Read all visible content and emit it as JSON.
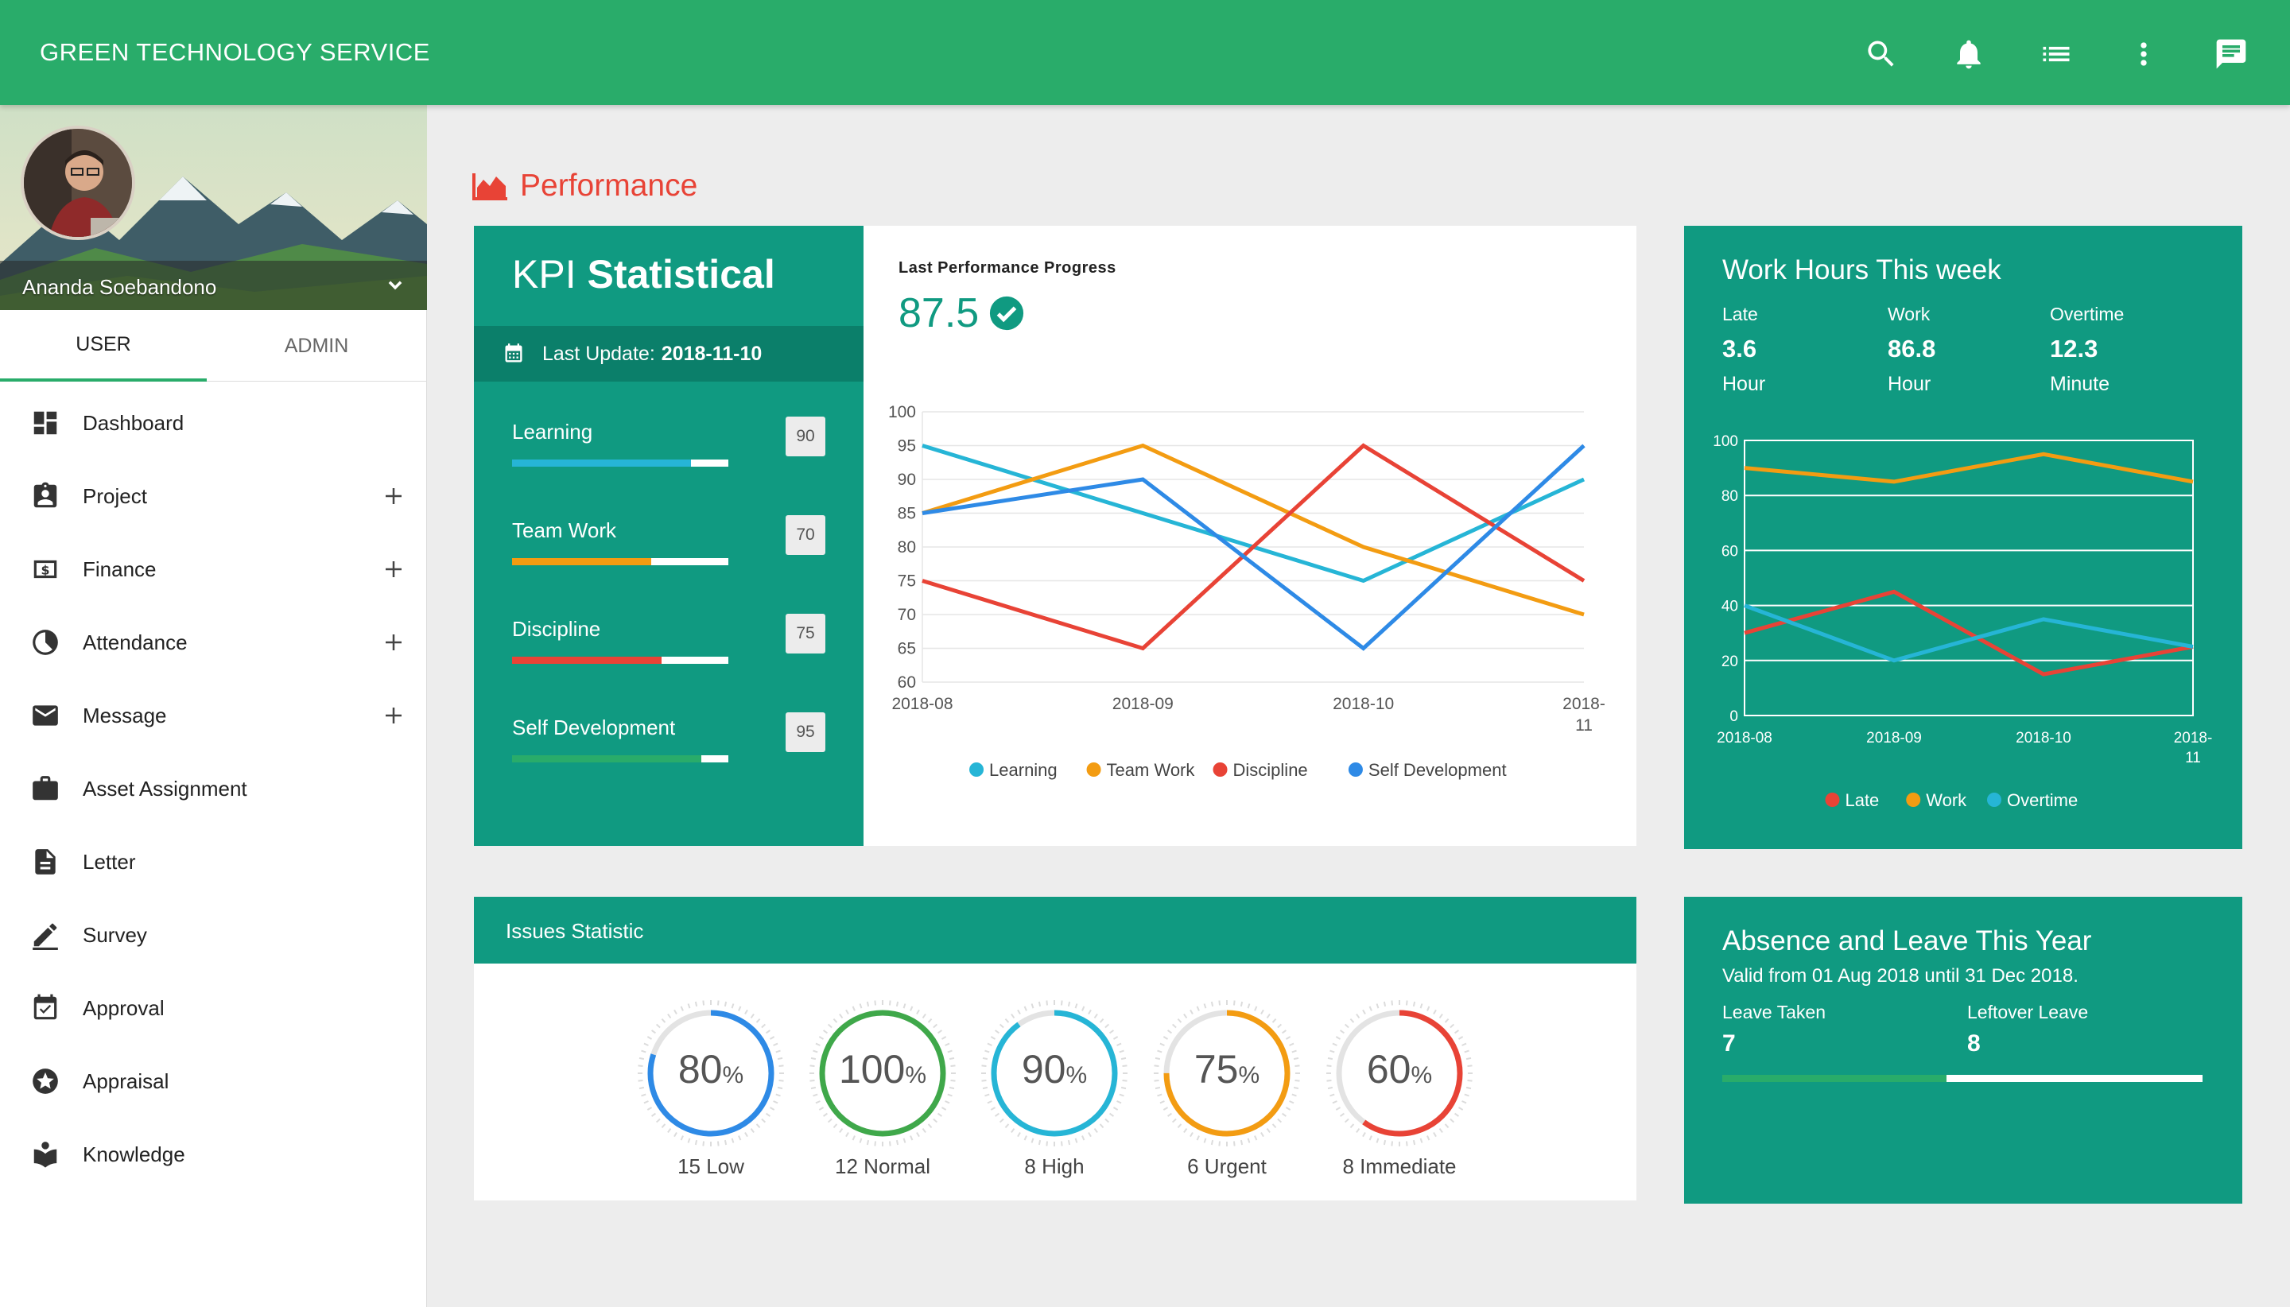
{
  "app": {
    "title": "GREEN TECHNOLOGY SERVICE"
  },
  "topbar_icons": [
    "search-icon",
    "bell-icon",
    "list-icon",
    "more-vert-icon",
    "chat-icon"
  ],
  "user": {
    "name": "Ananda Soebandono"
  },
  "tabs": [
    {
      "label": "USER",
      "active": true
    },
    {
      "label": "ADMIN",
      "active": false
    }
  ],
  "menu": [
    {
      "label": "Dashboard",
      "icon": "dashboard-icon",
      "expandable": false
    },
    {
      "label": "Project",
      "icon": "clipboard-icon",
      "expandable": true
    },
    {
      "label": "Finance",
      "icon": "money-icon",
      "expandable": true
    },
    {
      "label": "Attendance",
      "icon": "clock-icon",
      "expandable": true
    },
    {
      "label": "Message",
      "icon": "mail-icon",
      "expandable": true
    },
    {
      "label": "Asset Assignment",
      "icon": "briefcase-icon",
      "expandable": false
    },
    {
      "label": "Letter",
      "icon": "document-icon",
      "expandable": false
    },
    {
      "label": "Survey",
      "icon": "pencil-icon",
      "expandable": false
    },
    {
      "label": "Approval",
      "icon": "calendar-check-icon",
      "expandable": false
    },
    {
      "label": "Appraisal",
      "icon": "star-circle-icon",
      "expandable": false
    },
    {
      "label": "Knowledge",
      "icon": "book-icon",
      "expandable": false
    }
  ],
  "section": {
    "title": "Performance"
  },
  "kpi": {
    "title_light": "KPI",
    "title_bold": "Statistical",
    "last_update_label": "Last Update:",
    "last_update_date": "2018-11-10",
    "items": [
      {
        "label": "Learning",
        "value": 90,
        "color": "#26b5d6"
      },
      {
        "label": "Team Work",
        "value": 70,
        "color": "#f39c12"
      },
      {
        "label": "Discipline",
        "value": 75,
        "color": "#e84336"
      },
      {
        "label": "Self Development",
        "value": 95,
        "color": "#29ac6a"
      }
    ]
  },
  "performance": {
    "title": "Last Performance Progress",
    "value": "87.5"
  },
  "chart_data": [
    {
      "type": "line",
      "title": "Last Performance Progress",
      "x": [
        "2018-08",
        "2018-09",
        "2018-10",
        "2018-11"
      ],
      "ylim": [
        60,
        100
      ],
      "yticks": [
        60,
        65,
        70,
        75,
        80,
        85,
        90,
        95,
        100
      ],
      "grid": true,
      "legend": "bottom",
      "series": [
        {
          "name": "Learning",
          "color": "#26b5d6",
          "values": [
            95,
            85,
            75,
            90
          ]
        },
        {
          "name": "Team Work",
          "color": "#f39c12",
          "values": [
            85,
            95,
            80,
            70
          ]
        },
        {
          "name": "Discipline",
          "color": "#e84336",
          "values": [
            75,
            65,
            95,
            75
          ]
        },
        {
          "name": "Self Development",
          "color": "#2e8ae6",
          "values": [
            85,
            90,
            65,
            95
          ]
        }
      ]
    },
    {
      "type": "line",
      "title": "Work Hours This week",
      "x": [
        "2018-08",
        "2018-09",
        "2018-10",
        "2018-11"
      ],
      "ylim": [
        0,
        100
      ],
      "yticks": [
        0,
        20,
        40,
        60,
        80,
        100
      ],
      "grid": true,
      "legend": "bottom",
      "series": [
        {
          "name": "Late",
          "color": "#e84336",
          "values": [
            30,
            45,
            15,
            25
          ]
        },
        {
          "name": "Work",
          "color": "#f39c12",
          "values": [
            90,
            85,
            95,
            85
          ]
        },
        {
          "name": "Overtime",
          "color": "#26b5d6",
          "values": [
            40,
            20,
            35,
            25
          ]
        }
      ]
    }
  ],
  "work_hours": {
    "title": "Work Hours This week",
    "stats": [
      {
        "label": "Late",
        "value": "3.6",
        "unit": "Hour"
      },
      {
        "label": "Work",
        "value": "86.8",
        "unit": "Hour"
      },
      {
        "label": "Overtime",
        "value": "12.3",
        "unit": "Minute"
      }
    ]
  },
  "issues": {
    "title": "Issues Statistic",
    "gauges": [
      {
        "percent": 80,
        "unit": "%",
        "label": "15 Low",
        "color": "#2e8ae6"
      },
      {
        "percent": 100,
        "unit": "%",
        "label": "12 Normal",
        "color": "#3fa84a"
      },
      {
        "percent": 90,
        "unit": "%",
        "label": "8 High",
        "color": "#26b5d6"
      },
      {
        "percent": 75,
        "unit": "%",
        "label": "6 Urgent",
        "color": "#f39c12"
      },
      {
        "percent": 60,
        "unit": "%",
        "label": "8 Immediate",
        "color": "#e84336"
      }
    ]
  },
  "absence": {
    "title": "Absence and Leave This Year",
    "valid": "Valid from 01 Aug 2018 until 31 Dec 2018.",
    "taken_label": "Leave Taken",
    "taken_value": "7",
    "leftover_label": "Leftover Leave",
    "leftover_value": "8"
  }
}
